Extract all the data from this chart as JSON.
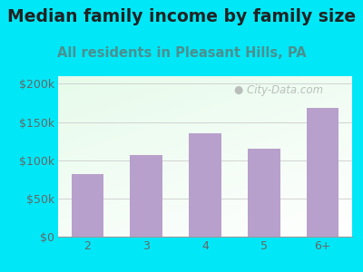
{
  "title": "Median family income by family size",
  "subtitle": "All residents in Pleasant Hills, PA",
  "categories": [
    "2",
    "3",
    "4",
    "5",
    "6+"
  ],
  "values": [
    82000,
    107000,
    135000,
    115000,
    168000
  ],
  "bar_color": "#b8a0cc",
  "title_color": "#222222",
  "subtitle_color": "#4a9090",
  "axis_color": "#666666",
  "background_outer": "#00e8f8",
  "ylim": [
    0,
    210000
  ],
  "yticks": [
    0,
    50000,
    100000,
    150000,
    200000
  ],
  "ytick_labels": [
    "$0",
    "$50k",
    "$100k",
    "$150k",
    "$200k"
  ],
  "watermark": "City-Data.com",
  "title_fontsize": 13.5,
  "subtitle_fontsize": 10.5,
  "tick_fontsize": 9
}
